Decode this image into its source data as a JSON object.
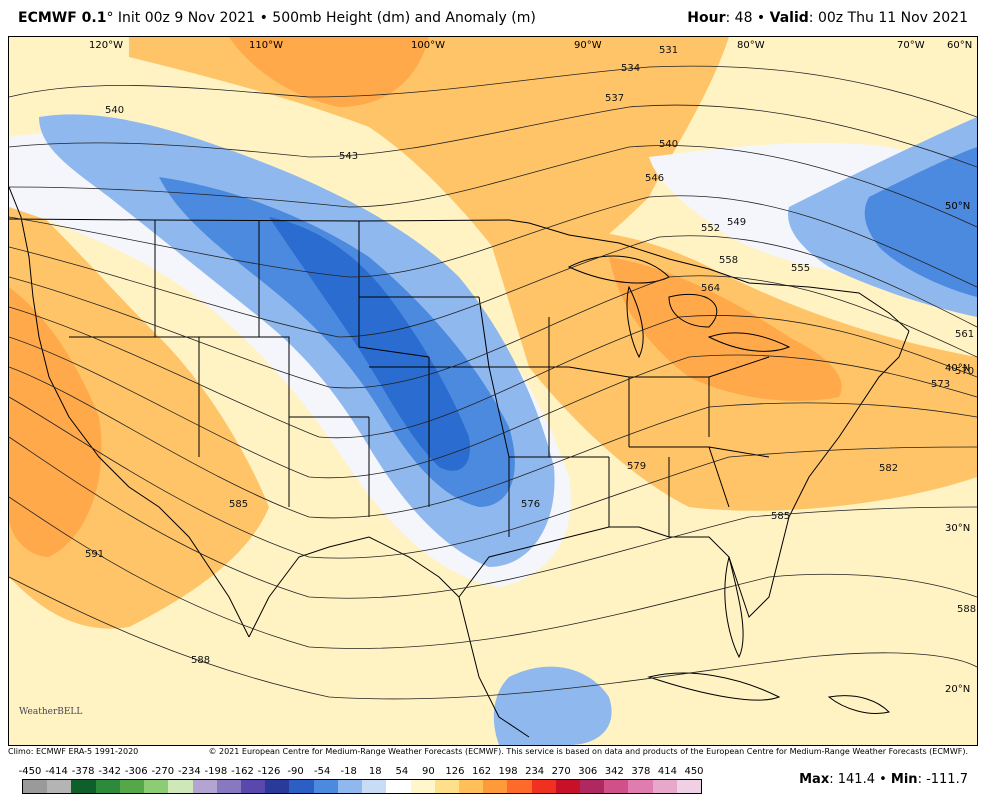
{
  "header": {
    "model": "ECMWF 0.1",
    "init": "Init 00z 9 Nov 2021",
    "product": "500mb Height (dm) and Anomaly (m)",
    "hour_label": "Hour",
    "hour_value": "48",
    "valid_label": "Valid",
    "valid_value": "00z Thu 11 Nov 2021"
  },
  "map": {
    "lon_labels": [
      "120°W",
      "110°W",
      "100°W",
      "90°W",
      "80°W",
      "70°W",
      "60°N"
    ],
    "lat_labels": [
      "50°N",
      "40°N",
      "30°N",
      "20°N"
    ],
    "contour_labels": [
      "540",
      "543",
      "531",
      "534",
      "537",
      "540",
      "546",
      "549",
      "552",
      "555",
      "558",
      "564",
      "561",
      "570",
      "573",
      "576",
      "579",
      "582",
      "585",
      "585",
      "588",
      "588",
      "591"
    ]
  },
  "footer": {
    "climo": "Climo: ECMWF ERA-5 1991-2020",
    "copyright": "© 2021 European Centre for Medium-Range Weather Forecasts (ECMWF). This service is based on data and products of the European Centre for Medium-Range Weather Forecasts (ECMWF)."
  },
  "colorbar": {
    "ticks": [
      "-450",
      "-414",
      "-378",
      "-342",
      "-306",
      "-270",
      "-234",
      "-198",
      "-162",
      "-126",
      "-90",
      "-54",
      "-18",
      "18",
      "54",
      "90",
      "126",
      "162",
      "198",
      "234",
      "270",
      "306",
      "342",
      "378",
      "414",
      "450"
    ],
    "colors": [
      "#9a9a9a",
      "#b4b4b4",
      "#0f5f2a",
      "#2d8a3a",
      "#55a84a",
      "#8ccc74",
      "#cfe8b8",
      "#b3a4d2",
      "#8878bf",
      "#5a48ac",
      "#2a3a9a",
      "#2b5fc4",
      "#4c8ae0",
      "#8fb8ee",
      "#c8dcf6",
      "#ffffff",
      "#fff6cc",
      "#ffe08a",
      "#ffbf5a",
      "#ff9a3a",
      "#ff6a2a",
      "#f03020",
      "#c81028",
      "#b02860",
      "#d0508a",
      "#e07cb0",
      "#e8a8cc",
      "#f0d0e4"
    ]
  },
  "stats": {
    "max_label": "Max",
    "max_value": "141.4",
    "min_label": "Min",
    "min_value": "-111.7"
  },
  "logo": {
    "text": "WeatherBELL"
  }
}
